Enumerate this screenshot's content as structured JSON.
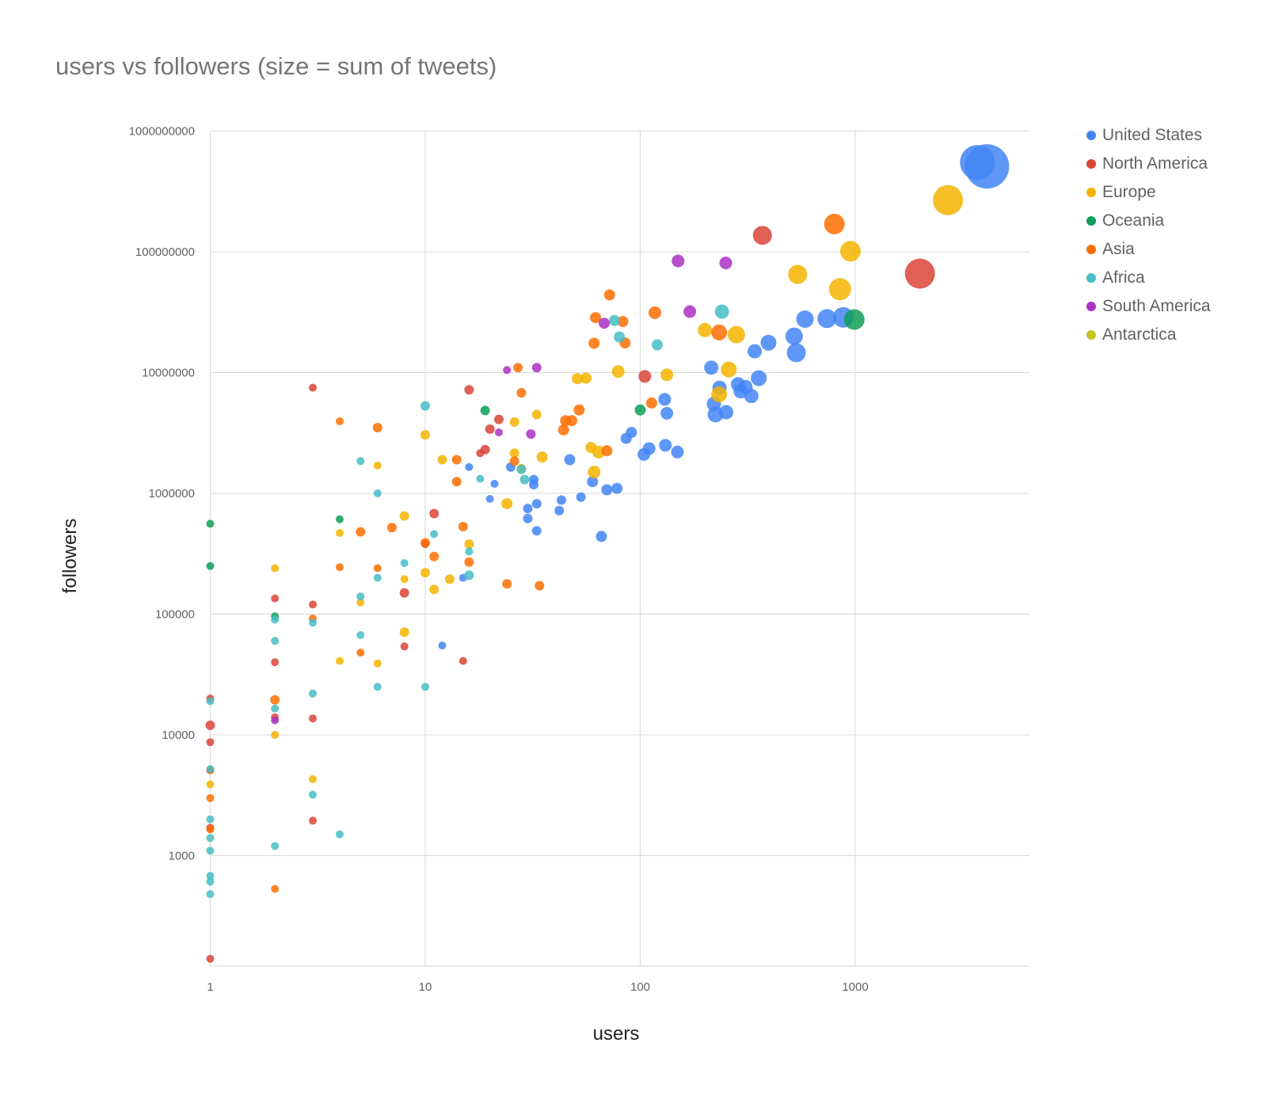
{
  "chart_data": {
    "type": "scatter",
    "title": "users vs followers (size = sum of tweets)",
    "xlabel": "users",
    "ylabel": "followers",
    "x_scale": "log",
    "y_scale": "log",
    "xlim": [
      1,
      4000
    ],
    "ylim": [
      130,
      1000000000
    ],
    "x_ticks": [
      "1",
      "10",
      "100",
      "1000"
    ],
    "x_tick_values": [
      1,
      10,
      100,
      1000
    ],
    "y_ticks": [
      "1000",
      "10000",
      "100000",
      "1000000",
      "10000000",
      "100000000",
      "1000000000"
    ],
    "y_tick_values": [
      1000,
      10000,
      100000,
      1000000,
      10000000,
      100000000,
      1000000000
    ],
    "grid": true,
    "legend_position": "right",
    "series": [
      {
        "name": "United States",
        "color": "#4285f4",
        "points": [
          [
            12,
            55000,
            5
          ],
          [
            15,
            200000,
            5
          ],
          [
            16,
            1650000,
            5
          ],
          [
            20,
            900000,
            5
          ],
          [
            21,
            1200000,
            5
          ],
          [
            25,
            1650000,
            6
          ],
          [
            30,
            750000,
            6
          ],
          [
            30,
            620000,
            6
          ],
          [
            32,
            1300000,
            6
          ],
          [
            33,
            820000,
            6
          ],
          [
            33,
            490000,
            6
          ],
          [
            32,
            1180000,
            6
          ],
          [
            42,
            720000,
            6
          ],
          [
            43,
            880000,
            6
          ],
          [
            47,
            1900000,
            7
          ],
          [
            53,
            930000,
            6
          ],
          [
            60,
            1250000,
            7
          ],
          [
            66,
            440000,
            7
          ],
          [
            70,
            1070000,
            7
          ],
          [
            78,
            1100000,
            7
          ],
          [
            86,
            2850000,
            7
          ],
          [
            91,
            3200000,
            7
          ],
          [
            104,
            2100000,
            8
          ],
          [
            110,
            2350000,
            8
          ],
          [
            131,
            2500000,
            8
          ],
          [
            149,
            2200000,
            8
          ],
          [
            133,
            4600000,
            8
          ],
          [
            130,
            6000000,
            8
          ],
          [
            214,
            11000000,
            9
          ],
          [
            220,
            5500000,
            9
          ],
          [
            224,
            4500000,
            10
          ],
          [
            234,
            7500000,
            9
          ],
          [
            251,
            4700000,
            9
          ],
          [
            285,
            8000000,
            9
          ],
          [
            293,
            7000000,
            9
          ],
          [
            309,
            7600000,
            9
          ],
          [
            329,
            6400000,
            9
          ],
          [
            341,
            15000000,
            9
          ],
          [
            356,
            9000000,
            10
          ],
          [
            395,
            17700000,
            10
          ],
          [
            520,
            20000000,
            11
          ],
          [
            532,
            14600000,
            12
          ],
          [
            584,
            27700000,
            11
          ],
          [
            739,
            28000000,
            12
          ],
          [
            880,
            28700000,
            13
          ],
          [
            3700,
            550000000,
            22
          ],
          [
            4100,
            510000000,
            28
          ]
        ]
      },
      {
        "name": "North America",
        "color": "#db4437",
        "points": [
          [
            1,
            20000,
            5
          ],
          [
            1,
            12000,
            6
          ],
          [
            1,
            8700,
            5
          ],
          [
            1,
            5100,
            5
          ],
          [
            1,
            1700,
            5
          ],
          [
            1,
            140,
            5
          ],
          [
            2,
            135000,
            5
          ],
          [
            2,
            40000,
            5
          ],
          [
            2,
            14000,
            5
          ],
          [
            3,
            7500000,
            5
          ],
          [
            3,
            120000,
            5
          ],
          [
            3,
            13700,
            5
          ],
          [
            3,
            1950,
            5
          ],
          [
            8,
            150000,
            6
          ],
          [
            8,
            54000,
            5
          ],
          [
            10,
            380000,
            5
          ],
          [
            11,
            680000,
            6
          ],
          [
            15,
            41000,
            5
          ],
          [
            16,
            7200000,
            6
          ],
          [
            18,
            2150000,
            5
          ],
          [
            19,
            2300000,
            6
          ],
          [
            20,
            3400000,
            6
          ],
          [
            22,
            4100000,
            6
          ],
          [
            105,
            9300000,
            8
          ],
          [
            370,
            137000000,
            12
          ],
          [
            2000,
            66000000,
            19
          ]
        ]
      },
      {
        "name": "Europe",
        "color": "#f4b400",
        "points": [
          [
            1,
            3900,
            5
          ],
          [
            2,
            240000,
            5
          ],
          [
            2,
            10000,
            5
          ],
          [
            3,
            4300,
            5
          ],
          [
            4,
            470000,
            5
          ],
          [
            4,
            41000,
            5
          ],
          [
            5,
            125000,
            5
          ],
          [
            6,
            1700000,
            5
          ],
          [
            6,
            39000,
            5
          ],
          [
            8,
            650000,
            6
          ],
          [
            8,
            195000,
            5
          ],
          [
            8,
            71000,
            6
          ],
          [
            10,
            3050000,
            6
          ],
          [
            10,
            220000,
            6
          ],
          [
            11,
            160000,
            6
          ],
          [
            12,
            1900000,
            6
          ],
          [
            13,
            195000,
            6
          ],
          [
            16,
            380000,
            6
          ],
          [
            24,
            820000,
            7
          ],
          [
            26,
            2150000,
            6
          ],
          [
            26,
            3900000,
            6
          ],
          [
            28,
            1600000,
            6
          ],
          [
            33,
            4500000,
            6
          ],
          [
            35,
            2000000,
            7
          ],
          [
            51,
            8900000,
            7
          ],
          [
            56,
            9000000,
            7
          ],
          [
            59,
            2400000,
            7
          ],
          [
            61,
            1500000,
            8
          ],
          [
            64,
            2200000,
            8
          ],
          [
            79,
            10200000,
            8
          ],
          [
            133,
            9600000,
            8
          ],
          [
            200,
            22500000,
            9
          ],
          [
            233,
            6600000,
            10
          ],
          [
            258,
            10600000,
            10
          ],
          [
            280,
            20600000,
            11
          ],
          [
            540,
            65000000,
            12
          ],
          [
            850,
            49000000,
            14
          ],
          [
            950,
            101000000,
            13
          ],
          [
            2700,
            268000000,
            19
          ]
        ]
      },
      {
        "name": "Oceania",
        "color": "#0f9d58",
        "points": [
          [
            1,
            250000,
            5
          ],
          [
            1,
            560000,
            5
          ],
          [
            2,
            96000,
            5
          ],
          [
            4,
            610000,
            5
          ],
          [
            19,
            4850000,
            6
          ],
          [
            100,
            4900000,
            7
          ],
          [
            990,
            27500000,
            13
          ]
        ]
      },
      {
        "name": "Asia",
        "color": "#ff6d01",
        "points": [
          [
            1,
            3000,
            5
          ],
          [
            1,
            1650,
            5
          ],
          [
            1,
            5100,
            5
          ],
          [
            2,
            530,
            5
          ],
          [
            2,
            19500,
            6
          ],
          [
            3,
            92000,
            5
          ],
          [
            4,
            3950000,
            5
          ],
          [
            4,
            245000,
            5
          ],
          [
            5,
            480000,
            6
          ],
          [
            5,
            48000,
            5
          ],
          [
            6,
            3500000,
            6
          ],
          [
            6,
            240000,
            5
          ],
          [
            7,
            520000,
            6
          ],
          [
            10,
            390000,
            6
          ],
          [
            11,
            300000,
            6
          ],
          [
            14,
            1900000,
            6
          ],
          [
            14,
            1250000,
            6
          ],
          [
            15,
            530000,
            6
          ],
          [
            16,
            270000,
            6
          ],
          [
            24,
            178000,
            6
          ],
          [
            26,
            1850000,
            6
          ],
          [
            27,
            11000000,
            6
          ],
          [
            28,
            6800000,
            6
          ],
          [
            34,
            172000,
            6
          ],
          [
            44,
            3350000,
            7
          ],
          [
            45,
            4000000,
            7
          ],
          [
            48,
            4000000,
            7
          ],
          [
            52,
            4900000,
            7
          ],
          [
            61,
            17500000,
            7
          ],
          [
            62,
            28500000,
            7
          ],
          [
            70,
            2250000,
            7
          ],
          [
            72,
            44000000,
            7
          ],
          [
            83,
            26500000,
            7
          ],
          [
            85,
            17600000,
            7
          ],
          [
            113,
            5600000,
            7
          ],
          [
            117,
            31300000,
            8
          ],
          [
            233,
            21500000,
            10
          ],
          [
            800,
            170000000,
            13
          ]
        ]
      },
      {
        "name": "Africa",
        "color": "#46bdc6",
        "points": [
          [
            1,
            5200,
            5
          ],
          [
            1,
            2000,
            5
          ],
          [
            1,
            1400,
            5
          ],
          [
            1,
            1100,
            5
          ],
          [
            1,
            680,
            5
          ],
          [
            1,
            610,
            5
          ],
          [
            1,
            480,
            5
          ],
          [
            1,
            19000,
            5
          ],
          [
            2,
            90000,
            5
          ],
          [
            2,
            60000,
            5
          ],
          [
            2,
            16500,
            5
          ],
          [
            2,
            1200,
            5
          ],
          [
            3,
            85000,
            5
          ],
          [
            3,
            22000,
            5
          ],
          [
            3,
            3200,
            5
          ],
          [
            4,
            1500,
            5
          ],
          [
            5,
            1850000,
            5
          ],
          [
            5,
            140000,
            5
          ],
          [
            5,
            67000,
            5
          ],
          [
            6,
            1000000,
            5
          ],
          [
            6,
            200000,
            5
          ],
          [
            6,
            25000,
            5
          ],
          [
            8,
            265000,
            5
          ],
          [
            10,
            5300000,
            6
          ],
          [
            10,
            25000,
            5
          ],
          [
            11,
            460000,
            5
          ],
          [
            16,
            330000,
            5
          ],
          [
            16,
            210000,
            6
          ],
          [
            18,
            1320000,
            5
          ],
          [
            28,
            1580000,
            6
          ],
          [
            29,
            1300000,
            6
          ],
          [
            76,
            27000000,
            7
          ],
          [
            80,
            19700000,
            7
          ],
          [
            120,
            17000000,
            7
          ],
          [
            240,
            32000000,
            9
          ]
        ]
      },
      {
        "name": "South America",
        "color": "#ab30c4",
        "points": [
          [
            2,
            13200,
            5
          ],
          [
            22,
            3200000,
            5
          ],
          [
            24,
            10500000,
            5
          ],
          [
            31,
            3100000,
            6
          ],
          [
            33,
            11000000,
            6
          ],
          [
            68,
            25600000,
            7
          ],
          [
            150,
            84000000,
            8
          ],
          [
            170,
            32000000,
            8
          ],
          [
            250,
            81000000,
            8
          ]
        ]
      },
      {
        "name": "Antarctica",
        "color": "#c5c31f",
        "points": []
      }
    ]
  }
}
